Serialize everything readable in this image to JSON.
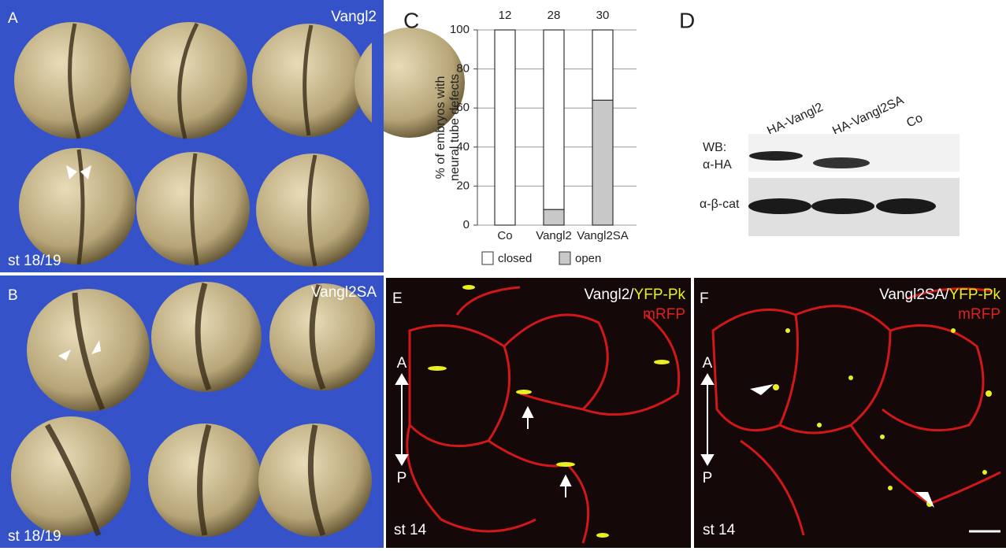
{
  "panels": {
    "a": {
      "letter": "A",
      "label": "Vangl2",
      "stage": "st 18/19"
    },
    "b": {
      "letter": "B",
      "label": "Vangl2SA",
      "stage": "st 18/19"
    },
    "c": {
      "letter": "C"
    },
    "d": {
      "letter": "D",
      "lanes": [
        "HA-Vangl2",
        "HA-Vangl2SA",
        "Co"
      ],
      "row_labels": [
        "WB:",
        "α-HA",
        "α-β-cat"
      ]
    },
    "e": {
      "letter": "E",
      "label_parts": [
        "Vangl2/",
        "YFP-Pk"
      ],
      "label2": "mRFP",
      "axis_top": "A",
      "axis_bottom": "P",
      "stage": "st 14"
    },
    "f": {
      "letter": "F",
      "label_parts": [
        "Vangl2SA/",
        "YFP-Pk"
      ],
      "label2": "mRFP",
      "axis_top": "A",
      "axis_bottom": "P",
      "stage": "st 14"
    }
  },
  "chart_data": {
    "type": "stacked_bar",
    "ylabel": [
      "% of embryos with",
      "neural tube defects"
    ],
    "categories": [
      "Co",
      "Vangl2",
      "Vangl2SA"
    ],
    "counts": [
      12,
      28,
      30
    ],
    "series": [
      {
        "name": "open",
        "color": "#c8c8c8",
        "values": [
          0,
          8,
          64
        ]
      },
      {
        "name": "closed",
        "color": "#ffffff",
        "values": [
          100,
          92,
          36
        ]
      }
    ],
    "legend_order": [
      "closed",
      "open"
    ],
    "ylim": [
      0,
      100
    ],
    "yticks": [
      0,
      20,
      40,
      60,
      80,
      100
    ],
    "grid": true
  }
}
